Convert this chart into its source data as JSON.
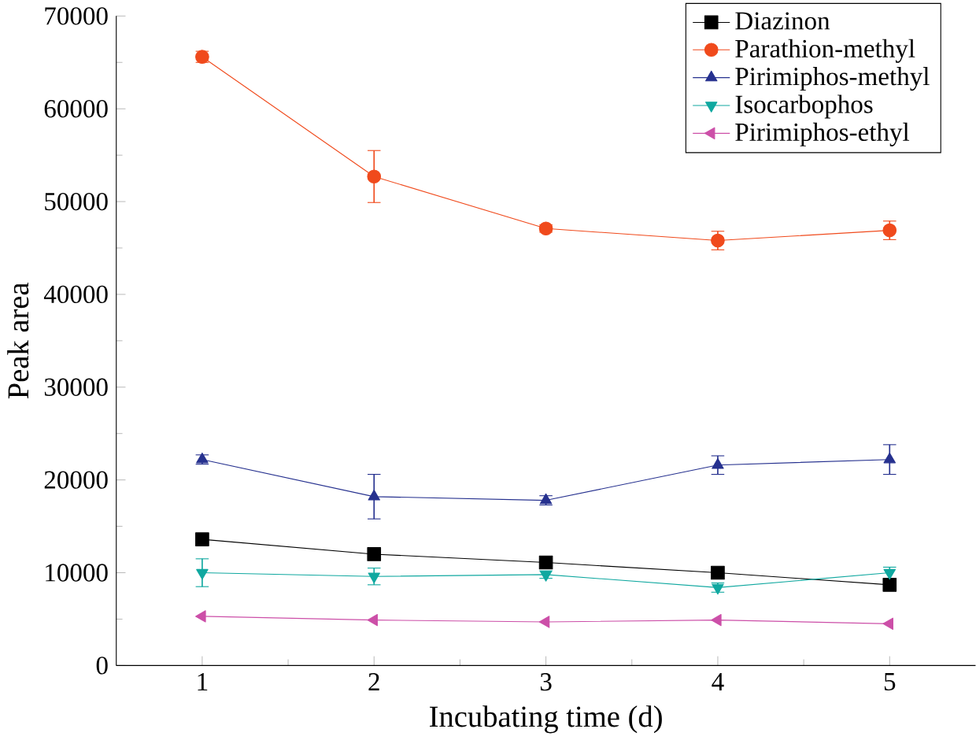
{
  "chart_data": {
    "type": "line",
    "xlabel": "Incubating time (d)",
    "ylabel": "Peak area",
    "x": [
      1,
      2,
      3,
      4,
      5
    ],
    "series": [
      {
        "name": "Diazinon",
        "color": "#000000",
        "marker": "square",
        "values": [
          13600,
          12000,
          11100,
          10000,
          8700
        ]
      },
      {
        "name": "Parathion-methyl",
        "color": "#f04a1c",
        "marker": "circle",
        "values": [
          65600,
          52700,
          47100,
          45800,
          46900
        ],
        "errors": [
          600,
          2800,
          400,
          1000,
          1000
        ]
      },
      {
        "name": "Pirimiphos-methyl",
        "color": "#26318f",
        "marker": "triangle",
        "values": [
          22200,
          18200,
          17800,
          21600,
          22200
        ],
        "errors": [
          500,
          2400,
          500,
          1000,
          1600
        ]
      },
      {
        "name": "Isocarbophos",
        "color": "#10a8a0",
        "marker": "triangle down",
        "values": [
          10000,
          9600,
          9800,
          8400,
          10000
        ],
        "errors": [
          1500,
          900,
          400,
          500,
          600
        ]
      },
      {
        "name": "Pirimiphos-ethyl",
        "color": "#cc4fa8",
        "marker": "triangle left",
        "values": [
          5300,
          4900,
          4700,
          4900,
          4500
        ]
      }
    ],
    "xlim": [
      0.5,
      5.5
    ],
    "xticks": [
      1,
      2,
      3,
      4,
      5
    ],
    "ylim": [
      0,
      70000
    ],
    "yticks": [
      0,
      10000,
      20000,
      30000,
      40000,
      50000,
      60000,
      70000
    ],
    "legend": "top right",
    "grid": false
  }
}
